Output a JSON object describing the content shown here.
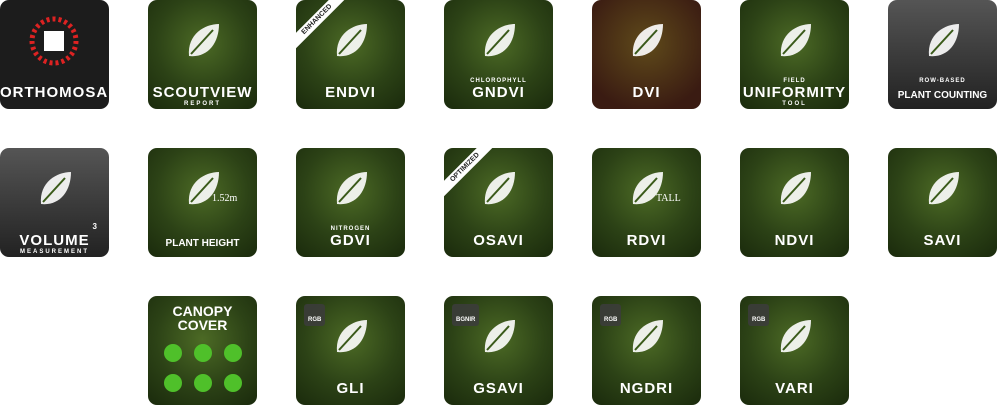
{
  "tiles": [
    {
      "label": "ORTHOMOSAIC"
    },
    {
      "label": "SCOUTVIEW",
      "sub": "REPORT"
    },
    {
      "corner": "ENHANCED",
      "label": "ENDVI"
    },
    {
      "over": "CHLOROPHYLL",
      "label": "GNDVI"
    },
    {
      "label": "DVI"
    },
    {
      "over": "FIELD",
      "label": "UNIFORMITY",
      "sub": "TOOL"
    },
    {
      "over": "ROW-BASED",
      "label": "PLANT COUNTING"
    },
    {
      "label": "VOLUME",
      "sup": "3",
      "sub": "MEASUREMENT"
    },
    {
      "note": "1.52m",
      "label": "PLANT HEIGHT"
    },
    {
      "over": "NITROGEN",
      "label": "GDVI"
    },
    {
      "corner": "OPTIMIZED",
      "label": "OSAVI"
    },
    {
      "note": "TALL",
      "label": "RDVI"
    },
    {
      "label": "NDVI"
    },
    {
      "label": "SAVI"
    },
    {
      "heading": "CANOPY COVER"
    },
    {
      "tag": "RGB",
      "label": "GLI"
    },
    {
      "tag": "BGNIR",
      "label": "GSAVI"
    },
    {
      "tag": "RGB",
      "label": "NGDRI"
    },
    {
      "tag": "RGB",
      "label": "VARI"
    }
  ]
}
